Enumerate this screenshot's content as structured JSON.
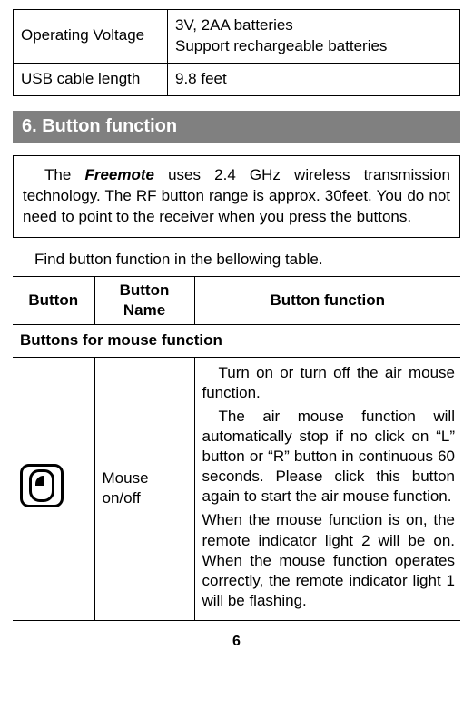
{
  "spec_table": {
    "rows": [
      {
        "label": "Operating Voltage",
        "value": "3V, 2AA batteries\nSupport rechargeable batteries"
      },
      {
        "label": "USB cable length",
        "value": "9.8 feet"
      }
    ]
  },
  "section_heading": "6.  Button function",
  "note": {
    "prefix": "The ",
    "product": "Freemote",
    "rest": " uses 2.4 GHz wireless transmission technology. The RF button range is approx. 30feet. You do not need to point to the receiver when you press the buttons."
  },
  "intro_line": "Find button function in the bellowing table.",
  "fn_headers": {
    "c1": "Button",
    "c2": "Button\nName",
    "c3": "Button function"
  },
  "fn_subhead": "Buttons for mouse function",
  "mouse_row": {
    "name": "Mouse on/off",
    "p1": "Turn on or turn off the air mouse function.",
    "p2": "The air mouse function will automatically stop if no click on “L” button or “R” button in continuous 60 seconds. Please click this button again to start the air mouse function.",
    "p3": "When the mouse function is on, the remote indicator light 2 will be on. When the mouse function operates correctly, the remote indicator light 1 will be flashing."
  },
  "page_number": "6"
}
